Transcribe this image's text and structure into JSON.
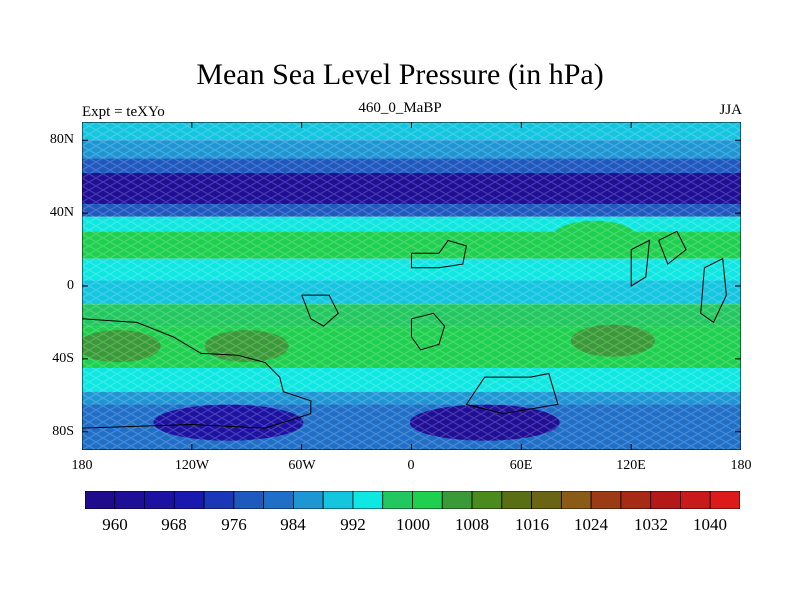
{
  "title": "Mean Sea Level Pressure (in hPa)",
  "subtitle": {
    "left": "Expt = teXYo",
    "center": "460_0_MaBP",
    "right": "JJA"
  },
  "map": {
    "projection": "cylindrical equidistant",
    "lon_range": [
      -180,
      180
    ],
    "lat_range": [
      -90,
      90
    ],
    "y_ticks": [
      "80N",
      "40N",
      "0",
      "40S",
      "80S"
    ],
    "x_ticks": [
      "180",
      "120W",
      "60W",
      "0",
      "60E",
      "120E",
      "180"
    ],
    "bands": [
      {
        "lat_from": 90,
        "lat_to": 80,
        "value": 990
      },
      {
        "lat_from": 80,
        "lat_to": 70,
        "value": 984
      },
      {
        "lat_from": 70,
        "lat_to": 62,
        "value": 976
      },
      {
        "lat_from": 62,
        "lat_to": 45,
        "value": 962
      },
      {
        "lat_from": 45,
        "lat_to": 38,
        "value": 976
      },
      {
        "lat_from": 38,
        "lat_to": 30,
        "value": 992
      },
      {
        "lat_from": 30,
        "lat_to": 15,
        "value": 1000
      },
      {
        "lat_from": 15,
        "lat_to": 3,
        "value": 992
      },
      {
        "lat_from": 3,
        "lat_to": -10,
        "value": 990
      },
      {
        "lat_from": -10,
        "lat_to": -22,
        "value": 996
      },
      {
        "lat_from": -22,
        "lat_to": -45,
        "value": 1000
      },
      {
        "lat_from": -45,
        "lat_to": -58,
        "value": 992
      },
      {
        "lat_from": -58,
        "lat_to": -65,
        "value": 984
      },
      {
        "lat_from": -65,
        "lat_to": -90,
        "value": 980
      }
    ],
    "features": [
      {
        "type": "high",
        "lon": -160,
        "lat": -33,
        "value": 1004
      },
      {
        "type": "high",
        "lon": -90,
        "lat": -33,
        "value": 1004
      },
      {
        "type": "high",
        "lon": 110,
        "lat": -30,
        "value": 1006
      },
      {
        "type": "high",
        "lon": 100,
        "lat": 27,
        "value": 1002
      },
      {
        "type": "low",
        "lon": 40,
        "lat": -75,
        "value": 962
      },
      {
        "type": "low",
        "lon": -100,
        "lat": -75,
        "value": 966
      }
    ],
    "continent_outlines": [
      [
        [
          -180,
          -18
        ],
        [
          -150,
          -20
        ],
        [
          -130,
          -28
        ],
        [
          -115,
          -37
        ],
        [
          -95,
          -38
        ],
        [
          -80,
          -42
        ],
        [
          -72,
          -50
        ],
        [
          -70,
          -58
        ],
        [
          -55,
          -63
        ],
        [
          -55,
          -70
        ],
        [
          -80,
          -78
        ],
        [
          -120,
          -76
        ],
        [
          -180,
          -78
        ]
      ],
      [
        [
          -60,
          -5
        ],
        [
          -45,
          -5
        ],
        [
          -40,
          -15
        ],
        [
          -48,
          -22
        ],
        [
          -55,
          -18
        ],
        [
          -58,
          -10
        ],
        [
          -60,
          -5
        ]
      ],
      [
        [
          0,
          18
        ],
        [
          15,
          18
        ],
        [
          20,
          25
        ],
        [
          30,
          22
        ],
        [
          28,
          12
        ],
        [
          15,
          10
        ],
        [
          0,
          10
        ],
        [
          0,
          18
        ]
      ],
      [
        [
          0,
          -18
        ],
        [
          12,
          -15
        ],
        [
          18,
          -22
        ],
        [
          15,
          -32
        ],
        [
          5,
          -35
        ],
        [
          0,
          -28
        ],
        [
          0,
          -18
        ]
      ],
      [
        [
          65,
          -50
        ],
        [
          75,
          -48
        ],
        [
          80,
          -65
        ],
        [
          50,
          -70
        ],
        [
          30,
          -65
        ],
        [
          40,
          -50
        ],
        [
          65,
          -50
        ]
      ],
      [
        [
          120,
          20
        ],
        [
          130,
          25
        ],
        [
          128,
          5
        ],
        [
          120,
          0
        ],
        [
          120,
          20
        ]
      ],
      [
        [
          135,
          25
        ],
        [
          145,
          30
        ],
        [
          150,
          20
        ],
        [
          140,
          12
        ],
        [
          135,
          25
        ]
      ],
      [
        [
          160,
          10
        ],
        [
          170,
          15
        ],
        [
          172,
          -5
        ],
        [
          165,
          -20
        ],
        [
          158,
          -15
        ],
        [
          160,
          10
        ]
      ]
    ]
  },
  "colorbar": {
    "colors": [
      "#1e0c8c",
      "#1f0e96",
      "#1d11a2",
      "#1919b0",
      "#1a37b8",
      "#1f58bf",
      "#1f6fc8",
      "#1f96d4",
      "#14c5e0",
      "#0ee7e2",
      "#22c760",
      "#1fd04f",
      "#3a9a38",
      "#4b8a1f",
      "#596f14",
      "#6a6514",
      "#8b5a16",
      "#9b3a14",
      "#a62a14",
      "#b41818",
      "#c81a1a",
      "#dd1a1a"
    ],
    "labels": [
      "960",
      "968",
      "976",
      "984",
      "992",
      "1000",
      "1008",
      "1016",
      "1024",
      "1032",
      "1040"
    ],
    "min": 956,
    "max": 1044,
    "step": 4
  }
}
